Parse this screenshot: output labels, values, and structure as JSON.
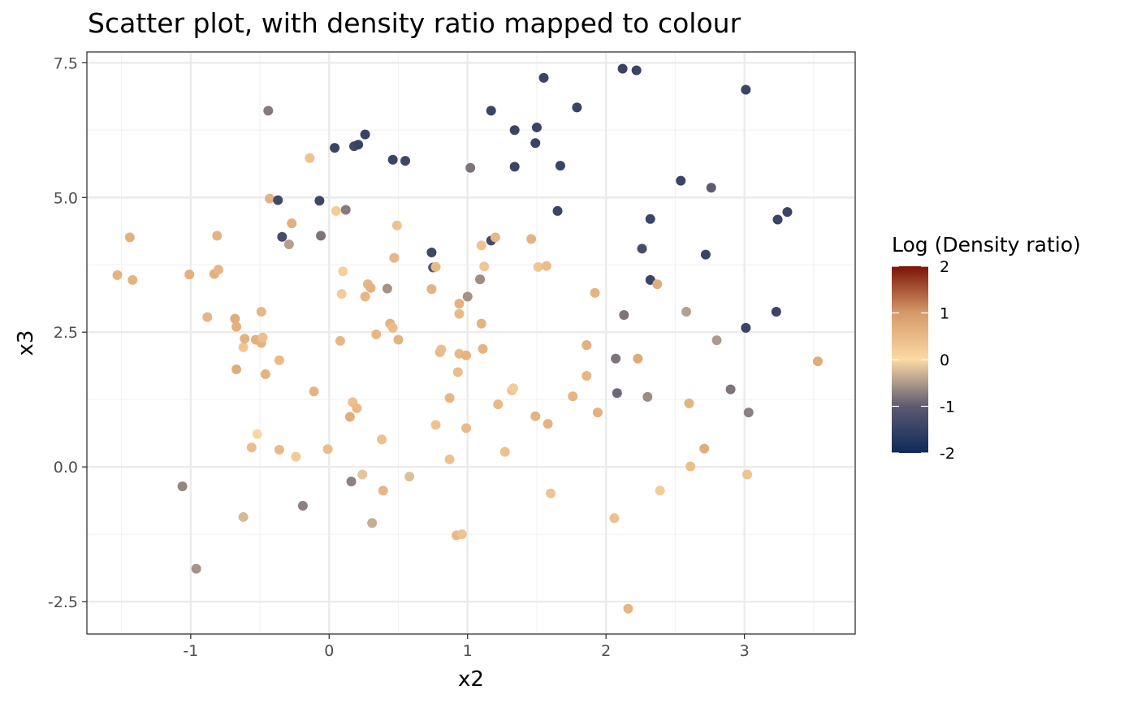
{
  "chart_data": {
    "type": "scatter",
    "title": "Scatter plot, with density ratio mapped to colour",
    "xlabel": "x2",
    "ylabel": "x3",
    "xlim": [
      -1.75,
      3.8
    ],
    "ylim": [
      -3.1,
      7.7
    ],
    "x_ticks": [
      -1,
      0,
      1,
      2,
      3
    ],
    "x_tick_labels": [
      "-1",
      "0",
      "1",
      "2",
      "3"
    ],
    "y_ticks": [
      -2.5,
      0,
      2.5,
      5,
      7.5
    ],
    "y_tick_labels": [
      "-2.5",
      "0.0",
      "2.5",
      "5.0",
      "7.5"
    ],
    "grid": true,
    "legend": {
      "title": "Log (Density ratio)",
      "placement": "right",
      "range": [
        -2,
        2
      ],
      "ticks": [
        2,
        1,
        0,
        -1,
        -2
      ],
      "tick_labels": [
        "2",
        "1",
        "0",
        "-1",
        "-2"
      ],
      "colors": [
        "#0d2a5c",
        "#5e5a70",
        "#fcd9a4",
        "#d69a6a",
        "#7a1406"
      ]
    },
    "points": [
      {
        "x": -1.53,
        "y": 3.56,
        "c": 0.6
      },
      {
        "x": -1.44,
        "y": 4.26,
        "c": 0.65
      },
      {
        "x": -1.42,
        "y": 3.47,
        "c": 0.6
      },
      {
        "x": -1.06,
        "y": -0.36,
        "c": -0.65
      },
      {
        "x": -1.01,
        "y": 3.57,
        "c": 0.65
      },
      {
        "x": -0.96,
        "y": -1.89,
        "c": -0.55
      },
      {
        "x": -0.88,
        "y": 2.78,
        "c": 0.55
      },
      {
        "x": -0.83,
        "y": 3.58,
        "c": 0.65
      },
      {
        "x": -0.81,
        "y": 4.29,
        "c": 0.6
      },
      {
        "x": -0.8,
        "y": 3.66,
        "c": 0.55
      },
      {
        "x": -0.68,
        "y": 2.75,
        "c": 0.7
      },
      {
        "x": -0.67,
        "y": 2.6,
        "c": 0.65
      },
      {
        "x": -0.67,
        "y": 1.81,
        "c": 0.7
      },
      {
        "x": -0.62,
        "y": 2.22,
        "c": 0.3
      },
      {
        "x": -0.62,
        "y": -0.93,
        "c": -0.25
      },
      {
        "x": -0.61,
        "y": 2.38,
        "c": 0.6
      },
      {
        "x": -0.56,
        "y": 0.36,
        "c": 0.45
      },
      {
        "x": -0.53,
        "y": 2.36,
        "c": 0.65
      },
      {
        "x": -0.52,
        "y": 0.61,
        "c": 0.05
      },
      {
        "x": -0.49,
        "y": 2.88,
        "c": 0.55
      },
      {
        "x": -0.49,
        "y": 2.3,
        "c": 0.6
      },
      {
        "x": -0.48,
        "y": 2.4,
        "c": 0.4
      },
      {
        "x": -0.46,
        "y": 1.72,
        "c": 0.6
      },
      {
        "x": -0.44,
        "y": 6.61,
        "c": -0.75
      },
      {
        "x": -0.43,
        "y": 4.98,
        "c": 0.6
      },
      {
        "x": -0.37,
        "y": 4.95,
        "c": -1.35
      },
      {
        "x": -0.36,
        "y": 1.98,
        "c": 0.5
      },
      {
        "x": -0.36,
        "y": 0.32,
        "c": 0.5
      },
      {
        "x": -0.34,
        "y": 4.27,
        "c": -1.3
      },
      {
        "x": -0.29,
        "y": 4.13,
        "c": -0.45
      },
      {
        "x": -0.27,
        "y": 4.52,
        "c": 0.65
      },
      {
        "x": -0.24,
        "y": 0.19,
        "c": 0.25
      },
      {
        "x": -0.19,
        "y": -0.72,
        "c": -0.7
      },
      {
        "x": -0.14,
        "y": 5.73,
        "c": 0.35
      },
      {
        "x": -0.11,
        "y": 1.4,
        "c": 0.6
      },
      {
        "x": -0.07,
        "y": 4.94,
        "c": -1.4
      },
      {
        "x": -0.06,
        "y": 4.29,
        "c": -0.8
      },
      {
        "x": -0.01,
        "y": 0.33,
        "c": 0.45
      },
      {
        "x": 0.04,
        "y": 5.92,
        "c": -1.45
      },
      {
        "x": 0.05,
        "y": 4.75,
        "c": 0.2
      },
      {
        "x": 0.08,
        "y": 2.34,
        "c": 0.55
      },
      {
        "x": 0.09,
        "y": 3.21,
        "c": 0.2
      },
      {
        "x": 0.1,
        "y": 3.63,
        "c": 0.15
      },
      {
        "x": 0.12,
        "y": 4.77,
        "c": -0.75
      },
      {
        "x": 0.15,
        "y": 0.93,
        "c": 0.7
      },
      {
        "x": 0.16,
        "y": -0.27,
        "c": -0.7
      },
      {
        "x": 0.17,
        "y": 1.2,
        "c": 0.4
      },
      {
        "x": 0.18,
        "y": 5.95,
        "c": -1.35
      },
      {
        "x": 0.2,
        "y": 1.09,
        "c": 0.5
      },
      {
        "x": 0.21,
        "y": 5.98,
        "c": -1.5
      },
      {
        "x": 0.24,
        "y": -0.14,
        "c": -0.15
      },
      {
        "x": 0.26,
        "y": 6.17,
        "c": -1.5
      },
      {
        "x": 0.26,
        "y": 3.16,
        "c": 0.55
      },
      {
        "x": 0.28,
        "y": 3.39,
        "c": 0.55
      },
      {
        "x": 0.3,
        "y": 3.32,
        "c": 0.6
      },
      {
        "x": 0.31,
        "y": -1.04,
        "c": -0.35
      },
      {
        "x": 0.34,
        "y": 2.46,
        "c": 0.55
      },
      {
        "x": 0.38,
        "y": 0.51,
        "c": 0.4
      },
      {
        "x": 0.39,
        "y": -0.44,
        "c": 0.55
      },
      {
        "x": 0.42,
        "y": 3.31,
        "c": -0.55
      },
      {
        "x": 0.44,
        "y": 2.66,
        "c": 0.6
      },
      {
        "x": 0.46,
        "y": 2.58,
        "c": 0.45
      },
      {
        "x": 0.46,
        "y": 5.7,
        "c": -1.45
      },
      {
        "x": 0.47,
        "y": 3.88,
        "c": 0.55
      },
      {
        "x": 0.49,
        "y": 4.48,
        "c": 0.35
      },
      {
        "x": 0.5,
        "y": 2.36,
        "c": 0.6
      },
      {
        "x": 0.55,
        "y": 5.68,
        "c": -1.4
      },
      {
        "x": 0.58,
        "y": -0.18,
        "c": -0.2
      },
      {
        "x": 0.74,
        "y": 3.98,
        "c": -1.4
      },
      {
        "x": 0.74,
        "y": 3.3,
        "c": 0.6
      },
      {
        "x": 0.75,
        "y": 3.7,
        "c": -1.1
      },
      {
        "x": 0.77,
        "y": 3.71,
        "c": 0.5
      },
      {
        "x": 0.77,
        "y": 0.78,
        "c": 0.35
      },
      {
        "x": 0.8,
        "y": 2.13,
        "c": 0.55
      },
      {
        "x": 0.81,
        "y": 2.18,
        "c": 0.45
      },
      {
        "x": 0.87,
        "y": 1.28,
        "c": 0.55
      },
      {
        "x": 0.87,
        "y": 0.14,
        "c": 0.4
      },
      {
        "x": 0.92,
        "y": -1.27,
        "c": 0.5
      },
      {
        "x": 0.93,
        "y": 1.76,
        "c": 0.45
      },
      {
        "x": 0.94,
        "y": 3.03,
        "c": 0.6
      },
      {
        "x": 0.94,
        "y": 2.84,
        "c": 0.5
      },
      {
        "x": 0.94,
        "y": 2.1,
        "c": 0.5
      },
      {
        "x": 0.96,
        "y": -1.25,
        "c": 0.35
      },
      {
        "x": 0.99,
        "y": 2.07,
        "c": 0.6
      },
      {
        "x": 0.99,
        "y": 0.72,
        "c": 0.5
      },
      {
        "x": 1.0,
        "y": 3.16,
        "c": -0.55
      },
      {
        "x": 1.02,
        "y": 5.55,
        "c": -0.8
      },
      {
        "x": 1.09,
        "y": 3.48,
        "c": -0.6
      },
      {
        "x": 1.1,
        "y": 4.11,
        "c": 0.35
      },
      {
        "x": 1.1,
        "y": 2.66,
        "c": 0.6
      },
      {
        "x": 1.11,
        "y": 2.19,
        "c": 0.6
      },
      {
        "x": 1.12,
        "y": 3.72,
        "c": 0.3
      },
      {
        "x": 1.17,
        "y": 6.61,
        "c": -1.45
      },
      {
        "x": 1.17,
        "y": 4.2,
        "c": -1.35
      },
      {
        "x": 1.2,
        "y": 4.26,
        "c": 0.55
      },
      {
        "x": 1.22,
        "y": 1.16,
        "c": 0.5
      },
      {
        "x": 1.27,
        "y": 0.28,
        "c": 0.4
      },
      {
        "x": 1.32,
        "y": 1.42,
        "c": 0.4
      },
      {
        "x": 1.33,
        "y": 1.46,
        "c": 0.2
      },
      {
        "x": 1.34,
        "y": 6.25,
        "c": -1.45
      },
      {
        "x": 1.34,
        "y": 5.57,
        "c": -1.45
      },
      {
        "x": 1.46,
        "y": 4.23,
        "c": 0.6
      },
      {
        "x": 1.49,
        "y": 6.01,
        "c": -1.45
      },
      {
        "x": 1.49,
        "y": 0.94,
        "c": 0.6
      },
      {
        "x": 1.5,
        "y": 6.3,
        "c": -1.45
      },
      {
        "x": 1.51,
        "y": 3.71,
        "c": 0.3
      },
      {
        "x": 1.55,
        "y": 7.22,
        "c": -1.45
      },
      {
        "x": 1.57,
        "y": 3.73,
        "c": 0.45
      },
      {
        "x": 1.58,
        "y": 0.8,
        "c": 0.6
      },
      {
        "x": 1.6,
        "y": -0.49,
        "c": 0.35
      },
      {
        "x": 1.65,
        "y": 4.75,
        "c": -1.45
      },
      {
        "x": 1.67,
        "y": 5.59,
        "c": -1.45
      },
      {
        "x": 1.76,
        "y": 1.31,
        "c": 0.55
      },
      {
        "x": 1.79,
        "y": 6.67,
        "c": -1.45
      },
      {
        "x": 1.86,
        "y": 2.26,
        "c": 0.65
      },
      {
        "x": 1.86,
        "y": 1.69,
        "c": 0.55
      },
      {
        "x": 1.92,
        "y": 3.23,
        "c": 0.6
      },
      {
        "x": 1.94,
        "y": 1.01,
        "c": 0.65
      },
      {
        "x": 2.06,
        "y": -0.95,
        "c": 0.4
      },
      {
        "x": 2.07,
        "y": 2.01,
        "c": -0.8
      },
      {
        "x": 2.08,
        "y": 1.37,
        "c": -0.9
      },
      {
        "x": 2.12,
        "y": 7.39,
        "c": -1.45
      },
      {
        "x": 2.13,
        "y": 2.82,
        "c": -0.8
      },
      {
        "x": 2.16,
        "y": -2.63,
        "c": 0.55
      },
      {
        "x": 2.22,
        "y": 7.36,
        "c": -1.45
      },
      {
        "x": 2.23,
        "y": 2.01,
        "c": 0.75
      },
      {
        "x": 2.26,
        "y": 4.05,
        "c": -1.3
      },
      {
        "x": 2.3,
        "y": 1.3,
        "c": -0.6
      },
      {
        "x": 2.32,
        "y": 4.6,
        "c": -1.45
      },
      {
        "x": 2.32,
        "y": 3.47,
        "c": -1.45
      },
      {
        "x": 2.37,
        "y": 3.39,
        "c": 0.7
      },
      {
        "x": 2.39,
        "y": -0.44,
        "c": 0.2
      },
      {
        "x": 2.54,
        "y": 5.31,
        "c": -1.45
      },
      {
        "x": 2.58,
        "y": 2.88,
        "c": -0.45
      },
      {
        "x": 2.6,
        "y": 1.18,
        "c": 0.6
      },
      {
        "x": 2.61,
        "y": 0.01,
        "c": 0.45
      },
      {
        "x": 2.71,
        "y": 0.34,
        "c": 0.7
      },
      {
        "x": 2.72,
        "y": 3.94,
        "c": -1.45
      },
      {
        "x": 2.76,
        "y": 5.18,
        "c": -1.0
      },
      {
        "x": 2.8,
        "y": 2.35,
        "c": -0.5
      },
      {
        "x": 2.9,
        "y": 1.44,
        "c": -0.8
      },
      {
        "x": 3.01,
        "y": 7.0,
        "c": -1.45
      },
      {
        "x": 3.01,
        "y": 2.58,
        "c": -1.45
      },
      {
        "x": 3.02,
        "y": -0.14,
        "c": 0.35
      },
      {
        "x": 3.03,
        "y": 1.01,
        "c": -0.7
      },
      {
        "x": 3.24,
        "y": 4.59,
        "c": -1.45
      },
      {
        "x": 3.23,
        "y": 2.88,
        "c": -1.45
      },
      {
        "x": 3.31,
        "y": 4.73,
        "c": -1.45
      },
      {
        "x": 3.53,
        "y": 1.96,
        "c": 0.7
      }
    ]
  }
}
